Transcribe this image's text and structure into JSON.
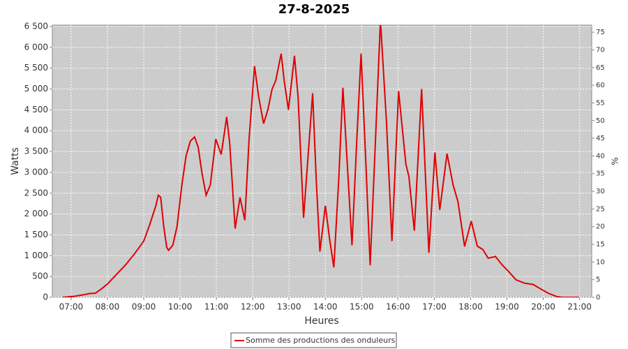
{
  "chart_data": {
    "type": "line",
    "title": "27-8-2025",
    "xlabel": "Heures",
    "ylabel": "Watts",
    "y2label": "%",
    "x": [
      "06:46",
      "07:03",
      "07:20",
      "07:30",
      "07:40",
      "07:50",
      "08:00",
      "08:15",
      "08:30",
      "08:45",
      "09:00",
      "09:10",
      "09:20",
      "09:24",
      "09:28",
      "09:33",
      "09:38",
      "09:41",
      "09:48",
      "09:55",
      "10:03",
      "10:10",
      "10:17",
      "10:24",
      "10:30",
      "10:36",
      "10:43",
      "10:50",
      "10:59",
      "11:08",
      "11:17",
      "11:22",
      "11:31",
      "11:39",
      "11:47",
      "11:54",
      "12:03",
      "12:10",
      "12:18",
      "12:25",
      "12:32",
      "12:38",
      "12:47",
      "12:52",
      "12:59",
      "13:09",
      "13:15",
      "13:24",
      "13:31",
      "13:39",
      "13:45",
      "13:51",
      "14:00",
      "14:07",
      "14:14",
      "14:22",
      "14:29",
      "14:37",
      "14:44",
      "14:52",
      "14:59",
      "15:07",
      "15:14",
      "15:22",
      "15:31",
      "15:41",
      "15:50",
      "16:01",
      "16:13",
      "16:18",
      "16:27",
      "16:39",
      "16:51",
      "17:01",
      "17:09",
      "17:21",
      "17:31",
      "17:39",
      "17:50",
      "18:01",
      "18:11",
      "18:20",
      "18:29",
      "18:41",
      "18:52",
      "19:04",
      "19:15",
      "19:29",
      "19:43",
      "19:56",
      "20:08",
      "20:22",
      "20:31",
      "20:59"
    ],
    "series": [
      {
        "name": "Somme des productions des onduleurs",
        "color": "#e00000",
        "values": [
          0,
          20,
          60,
          90,
          100,
          200,
          320,
          550,
          780,
          1050,
          1350,
          1750,
          2200,
          2450,
          2400,
          1700,
          1200,
          1130,
          1250,
          1700,
          2700,
          3400,
          3750,
          3850,
          3600,
          3000,
          2450,
          2700,
          3800,
          3430,
          4330,
          3700,
          1650,
          2400,
          1850,
          3800,
          5550,
          4800,
          4170,
          4500,
          5000,
          5200,
          5850,
          5200,
          4500,
          5800,
          4800,
          1910,
          3300,
          4900,
          2800,
          1100,
          2200,
          1400,
          720,
          2800,
          5030,
          3000,
          1250,
          3800,
          5850,
          3200,
          770,
          3500,
          6650,
          4200,
          1350,
          4950,
          3200,
          2900,
          1600,
          5000,
          1070,
          3480,
          2100,
          3450,
          2700,
          2300,
          1220,
          1830,
          1230,
          1150,
          940,
          980,
          780,
          600,
          420,
          340,
          310,
          200,
          100,
          20,
          0,
          0
        ]
      }
    ],
    "xlim": [
      "06:29",
      "21:20"
    ],
    "xticks": [
      "07:00",
      "08:00",
      "09:00",
      "10:00",
      "11:00",
      "12:00",
      "13:00",
      "14:00",
      "15:00",
      "16:00",
      "17:00",
      "18:00",
      "19:00",
      "20:00",
      "21:00"
    ],
    "ylim": [
      0,
      6534
    ],
    "yticks": [
      0,
      500,
      {
        "value": 1000,
        "label": "1 000"
      },
      {
        "value": 1500,
        "label": "1 500"
      },
      {
        "value": 2000,
        "label": "2 000"
      },
      {
        "value": 2500,
        "label": "2 500"
      },
      {
        "value": 3000,
        "label": "3 000"
      },
      {
        "value": 3500,
        "label": "3 500"
      },
      {
        "value": 4000,
        "label": "4 000"
      },
      {
        "value": 4500,
        "label": "4 500"
      },
      {
        "value": 5000,
        "label": "5 000"
      },
      {
        "value": 5500,
        "label": "5 500"
      },
      {
        "value": 6000,
        "label": "6 000"
      },
      {
        "value": 6500,
        "label": "6 500"
      }
    ],
    "y2lim": [
      0,
      77
    ],
    "y2ticks": [
      0,
      5,
      10,
      15,
      20,
      25,
      30,
      35,
      40,
      45,
      50,
      55,
      60,
      65,
      70,
      75
    ],
    "grid": true,
    "legend": "bottom"
  }
}
